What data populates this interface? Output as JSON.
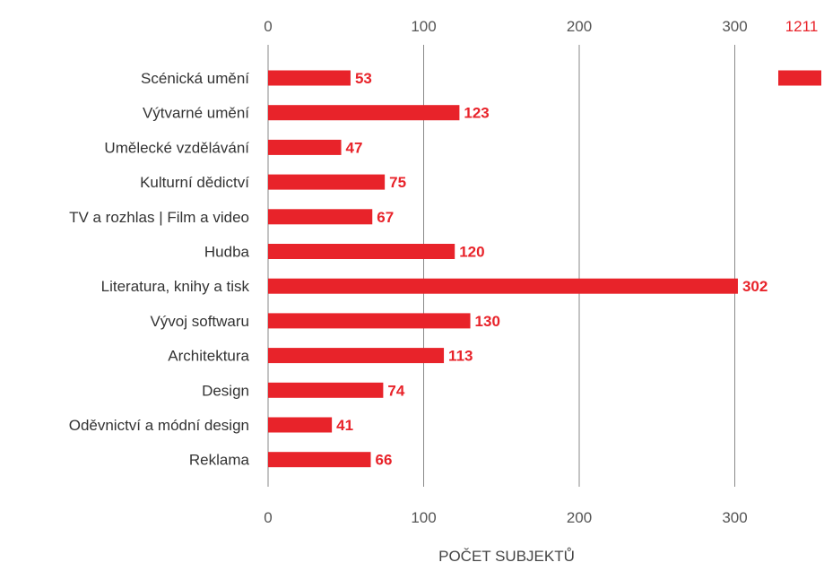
{
  "chart_data": {
    "type": "bar",
    "orientation": "horizontal",
    "categories": [
      "Scénická umění",
      "Výtvarné umění",
      "Umělecké vzdělávání",
      "Kulturní dědictví",
      "TV a rozhlas | Film a video",
      "Hudba",
      "Literatura, knihy a tisk",
      "Vývoj softwaru",
      "Architektura",
      "Design",
      "Oděvnictví a módní design",
      "Reklama"
    ],
    "values": [
      53,
      123,
      47,
      75,
      67,
      120,
      302,
      130,
      113,
      74,
      41,
      66
    ],
    "value_labels": [
      "53",
      "123",
      "47",
      "75",
      "67",
      "120",
      "302",
      "130",
      "113",
      "74",
      "41",
      "66"
    ],
    "overflow_bar": {
      "value": 1211,
      "label": "1211"
    },
    "xticks": [
      "0",
      "100",
      "200",
      "300"
    ],
    "xlim": [
      0,
      350
    ],
    "xlabel": "POČET SUBJEKTŮ",
    "title": "",
    "grid": true,
    "colors": {
      "bar": "#e8232a",
      "grid": "#8a8a8a"
    }
  }
}
